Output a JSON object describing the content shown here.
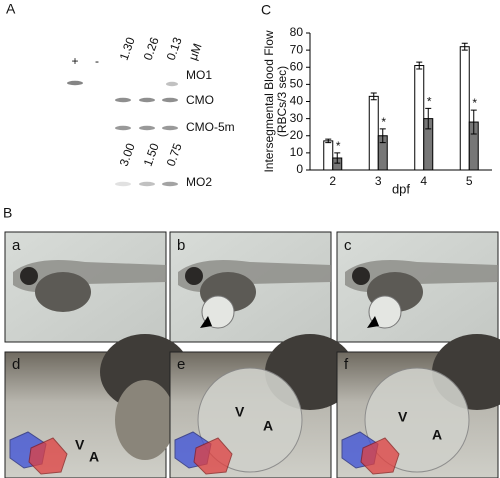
{
  "panels": {
    "A": "A",
    "B": "B",
    "C": "C"
  },
  "gel": {
    "lanes": [
      "+",
      "-"
    ],
    "conc1": [
      "1.30",
      "0.26",
      "0.13",
      "μM"
    ],
    "conc2": [
      "3.00",
      "1.50",
      "0.75"
    ],
    "bands": [
      "MO1",
      "CMO",
      "CMO-5m",
      "MO2"
    ]
  },
  "photos": {
    "labels": [
      "a",
      "b",
      "c",
      "d",
      "e",
      "f"
    ],
    "chambers": [
      [
        "V",
        "A"
      ],
      [
        "V",
        "A"
      ],
      [
        "V",
        "A"
      ]
    ]
  },
  "chart_data": {
    "type": "bar",
    "ylabel": [
      "Intersegmental Blood Flow",
      "(RBCs/3 sec)"
    ],
    "xlabel": "dpf",
    "categories": [
      "2",
      "3",
      "4",
      "5"
    ],
    "series": [
      {
        "color": "#ffffff",
        "values": [
          17,
          43,
          61,
          72
        ],
        "errors": [
          1,
          2,
          2,
          2
        ]
      },
      {
        "color": "#777777",
        "values": [
          7,
          20,
          30,
          28
        ],
        "errors": [
          3,
          4,
          6,
          7
        ]
      }
    ],
    "annotations": [
      "*",
      "*",
      "*",
      "*"
    ],
    "ylim": [
      0,
      80
    ],
    "yticks": [
      0,
      10,
      20,
      30,
      40,
      50,
      60,
      70,
      80
    ]
  }
}
